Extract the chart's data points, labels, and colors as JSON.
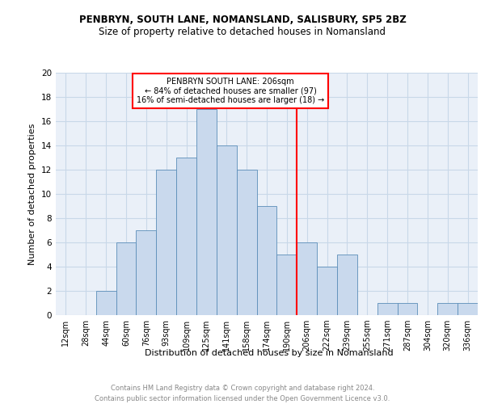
{
  "title1": "PENBRYN, SOUTH LANE, NOMANSLAND, SALISBURY, SP5 2BZ",
  "title2": "Size of property relative to detached houses in Nomansland",
  "xlabel": "Distribution of detached houses by size in Nomansland",
  "ylabel": "Number of detached properties",
  "footer": "Contains HM Land Registry data © Crown copyright and database right 2024.\nContains public sector information licensed under the Open Government Licence v3.0.",
  "bin_labels": [
    "12sqm",
    "28sqm",
    "44sqm",
    "60sqm",
    "76sqm",
    "93sqm",
    "109sqm",
    "125sqm",
    "141sqm",
    "158sqm",
    "174sqm",
    "190sqm",
    "206sqm",
    "222sqm",
    "239sqm",
    "255sqm",
    "271sqm",
    "287sqm",
    "304sqm",
    "320sqm",
    "336sqm"
  ],
  "bar_heights": [
    0,
    0,
    2,
    6,
    7,
    12,
    13,
    17,
    14,
    12,
    9,
    5,
    6,
    4,
    5,
    0,
    1,
    1,
    0,
    1,
    1
  ],
  "bar_color": "#c9d9ed",
  "bar_edge_color": "#5b8db8",
  "vline_color": "red",
  "annotation_text": "PENBRYN SOUTH LANE: 206sqm\n← 84% of detached houses are smaller (97)\n16% of semi-detached houses are larger (18) →",
  "annotation_box_color": "white",
  "annotation_box_edge": "red",
  "ylim": [
    0,
    20
  ],
  "yticks": [
    0,
    2,
    4,
    6,
    8,
    10,
    12,
    14,
    16,
    18,
    20
  ],
  "grid_color": "#c8d8e8",
  "bg_color": "#eaf0f8",
  "title1_fontsize": 8.5,
  "title2_fontsize": 8.5,
  "ylabel_fontsize": 8,
  "xlabel_fontsize": 8,
  "tick_fontsize": 7,
  "footer_fontsize": 6,
  "ann_fontsize": 7
}
